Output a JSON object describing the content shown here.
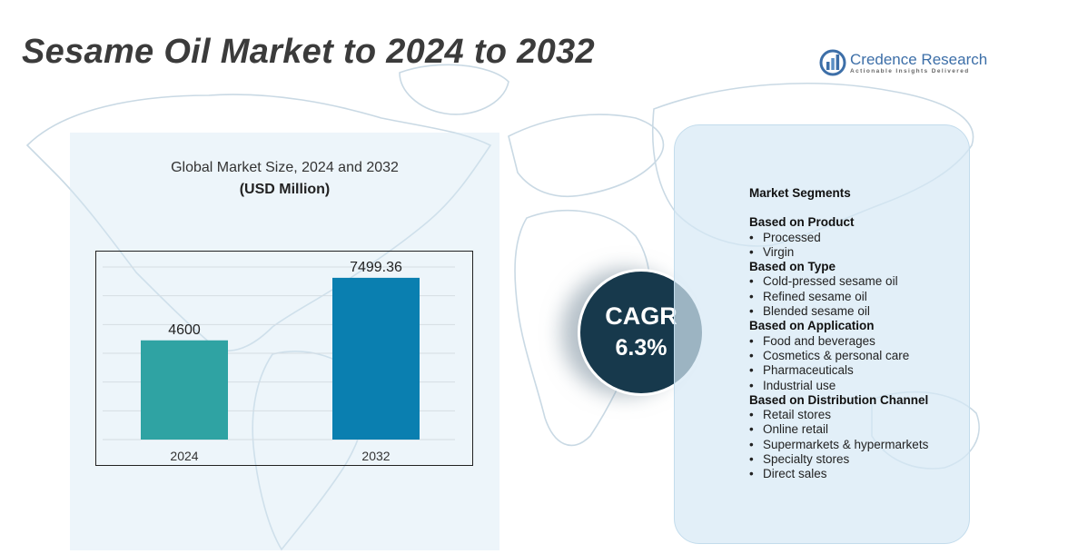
{
  "header": {
    "title": "Sesame Oil Market to 2024 to 2032"
  },
  "brand": {
    "name": "Credence Research",
    "tagline": "Actionable Insights Delivered"
  },
  "chart_panel": {
    "title": "Global Market Size,  2024 and 2032",
    "unit": "(USD Million)"
  },
  "chart_data": {
    "type": "bar",
    "title": "Global Market Size,  2024 and 2032",
    "ylabel": "(USD Million)",
    "categories": [
      "2024",
      "2032"
    ],
    "values": [
      4600,
      7499.36
    ],
    "value_labels": [
      "4600",
      "7499.36"
    ],
    "colors": [
      "#2fa3a3",
      "#0a7fb0"
    ],
    "ylim": [
      0,
      8000
    ],
    "grid": true,
    "legend": "none"
  },
  "cagr": {
    "label": "CAGR",
    "value": "6.3%"
  },
  "segments": {
    "heading": "Market Segments",
    "groups": [
      {
        "title": "Based on Product",
        "items": [
          "Processed",
          "Virgin"
        ]
      },
      {
        "title": "Based on Type",
        "items": [
          "Cold-pressed sesame oil",
          "Refined sesame oil",
          "Blended sesame oil"
        ]
      },
      {
        "title": "Based on Application",
        "items": [
          "Food and beverages",
          "Cosmetics & personal care",
          "Pharmaceuticals",
          "Industrial use"
        ]
      },
      {
        "title": "Based on Distribution Channel",
        "items": [
          "Retail stores",
          "Online retail",
          "Supermarkets & hypermarkets",
          "Specialty stores",
          "Direct sales"
        ]
      }
    ]
  },
  "colors": {
    "title": "#3b3b3b",
    "cagr_circle": "#17394c",
    "panel_bg": "#d6e8f5",
    "brand": "#3d6fa8"
  }
}
